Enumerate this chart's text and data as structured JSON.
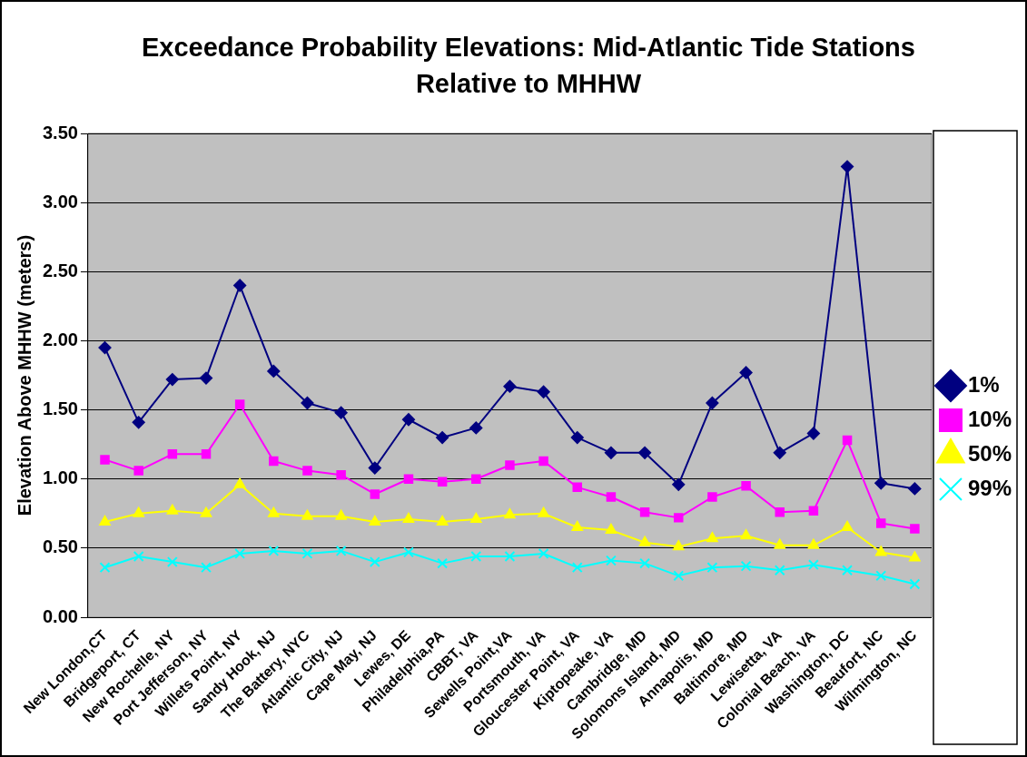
{
  "chart_data": {
    "type": "line",
    "title": "Exceedance Probability Elevations: Mid-Atlantic Tide Stations Relative to MHHW",
    "ylabel": "Elevation Above MHHW (meters)",
    "categories": [
      "New London,CT",
      "Bridgeport, CT",
      "New Rochelle, NY",
      "Port Jefferson, NY",
      "Willets Point, NY",
      "Sandy Hook, NJ",
      "The Battery, NYC",
      "Atlantic City, NJ",
      "Cape May, NJ",
      "Lewes, DE",
      "Philadelphia,PA",
      "CBBT, VA",
      "Sewells Point,VA",
      "Portsmouth, VA",
      "Gloucester Point, VA",
      "Kiptopeake, VA",
      "Cambridge, MD",
      "Solomons Island, MD",
      "Annapolis, MD",
      "Baltimore, MD",
      "Lewisetta, VA",
      "Colonial Beach, VA",
      "Washington, DC",
      "Beaufort, NC",
      "Wilmington, NC"
    ],
    "series": [
      {
        "name": "1%",
        "color": "#000080",
        "marker": "diamond",
        "values": [
          1.95,
          1.41,
          1.72,
          1.73,
          2.4,
          1.78,
          1.55,
          1.48,
          1.08,
          1.43,
          1.3,
          1.37,
          1.67,
          1.63,
          1.3,
          1.19,
          1.19,
          0.96,
          1.55,
          1.77,
          1.19,
          1.33,
          3.26,
          0.97,
          0.93
        ]
      },
      {
        "name": "10%",
        "color": "#ff00ff",
        "marker": "square",
        "values": [
          1.14,
          1.06,
          1.18,
          1.18,
          1.54,
          1.13,
          1.06,
          1.03,
          0.89,
          1.0,
          0.98,
          1.0,
          1.1,
          1.13,
          0.94,
          0.87,
          0.76,
          0.72,
          0.87,
          0.95,
          0.76,
          0.77,
          1.28,
          0.68,
          0.64
        ]
      },
      {
        "name": "50%",
        "color": "#ffff00",
        "marker": "triangle",
        "values": [
          0.69,
          0.75,
          0.77,
          0.75,
          0.96,
          0.75,
          0.73,
          0.73,
          0.69,
          0.71,
          0.69,
          0.71,
          0.74,
          0.75,
          0.65,
          0.63,
          0.54,
          0.51,
          0.57,
          0.59,
          0.52,
          0.52,
          0.65,
          0.47,
          0.43
        ]
      },
      {
        "name": "99%",
        "color": "#00ffff",
        "marker": "cross",
        "values": [
          0.36,
          0.44,
          0.4,
          0.36,
          0.46,
          0.48,
          0.46,
          0.48,
          0.4,
          0.47,
          0.39,
          0.44,
          0.44,
          0.46,
          0.36,
          0.41,
          0.39,
          0.3,
          0.36,
          0.37,
          0.34,
          0.38,
          0.34,
          0.3,
          0.24
        ]
      }
    ],
    "ylim": [
      0,
      3.5
    ],
    "yticks": [
      {
        "value": 0,
        "label": "0.00"
      },
      {
        "value": 0.5,
        "label": "0.50"
      },
      {
        "value": 1,
        "label": "1.00"
      },
      {
        "value": 1.5,
        "label": "1.50"
      },
      {
        "value": 2,
        "label": "2.00"
      },
      {
        "value": 2.5,
        "label": "2.50"
      },
      {
        "value": 3,
        "label": "3.00"
      },
      {
        "value": 3.5,
        "label": "3.50"
      }
    ],
    "grid": "y",
    "legend": "right",
    "line_style": "solid"
  }
}
